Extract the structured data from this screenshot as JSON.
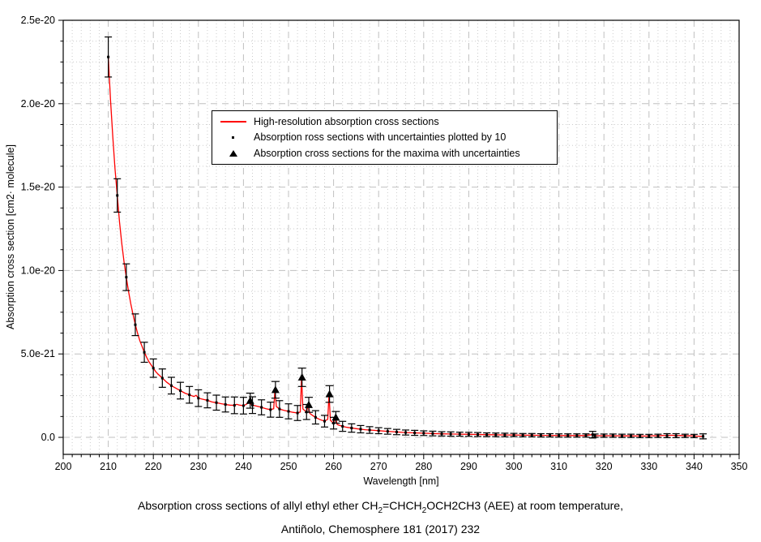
{
  "chart_data": {
    "type": "line",
    "title": "",
    "xlabel": "Wavelength [nm]",
    "ylabel": "Absorption cross section [cm2· molecule]",
    "xlim": [
      200,
      350
    ],
    "ylim_e21": [
      -1.02,
      25
    ],
    "grid": true,
    "legend_position": "top-center",
    "colors": {
      "line": "#ff0000",
      "markers": "#000000",
      "grid_major": "#c0c0c0",
      "grid_minor": "#cccccc"
    },
    "x_ticks": [
      {
        "v": 200,
        "label": "200"
      },
      {
        "v": 210,
        "label": "210"
      },
      {
        "v": 220,
        "label": "220"
      },
      {
        "v": 230,
        "label": "230"
      },
      {
        "v": 240,
        "label": "240"
      },
      {
        "v": 250,
        "label": "250"
      },
      {
        "v": 260,
        "label": "260"
      },
      {
        "v": 270,
        "label": "270"
      },
      {
        "v": 280,
        "label": "280"
      },
      {
        "v": 290,
        "label": "290"
      },
      {
        "v": 300,
        "label": "300"
      },
      {
        "v": 310,
        "label": "310"
      },
      {
        "v": 320,
        "label": "320"
      },
      {
        "v": 330,
        "label": "330"
      },
      {
        "v": 340,
        "label": "340"
      },
      {
        "v": 350,
        "label": "350"
      }
    ],
    "y_ticks": [
      {
        "v": 25,
        "label": "2.5e-20"
      },
      {
        "v": 20,
        "label": "2.0e-20"
      },
      {
        "v": 15,
        "label": "1.5e-20"
      },
      {
        "v": 10,
        "label": "1.0e-20"
      },
      {
        "v": 5,
        "label": "5.0e-21"
      },
      {
        "v": 0,
        "label": "0.0"
      }
    ],
    "x_minor_step": 2,
    "y_minor_step_e21": 1.25,
    "units_note": "values in 1e-21 cm2/molecule",
    "series": {
      "high_res_line": {
        "name": "High-resolution absorption cross sections",
        "points": [
          [
            210,
            22.8
          ],
          [
            210.5,
            20.2
          ],
          [
            211,
            18
          ],
          [
            211.5,
            16.1
          ],
          [
            212,
            14.5
          ],
          [
            212.5,
            12.9
          ],
          [
            213,
            11.6
          ],
          [
            213.5,
            10.5
          ],
          [
            214,
            9.6
          ],
          [
            214.5,
            8.75
          ],
          [
            215,
            8
          ],
          [
            215.5,
            7.35
          ],
          [
            216,
            6.75
          ],
          [
            216.5,
            6.25
          ],
          [
            217,
            5.8
          ],
          [
            217.5,
            5.45
          ],
          [
            218,
            5.1
          ],
          [
            218.5,
            4.8
          ],
          [
            219,
            4.55
          ],
          [
            219.5,
            4.35
          ],
          [
            220,
            4.15
          ],
          [
            220.5,
            3.95
          ],
          [
            221,
            3.8
          ],
          [
            222,
            3.55
          ],
          [
            223,
            3.3
          ],
          [
            224,
            3.1
          ],
          [
            225,
            2.95
          ],
          [
            226,
            2.8
          ],
          [
            227,
            2.65
          ],
          [
            228,
            2.55
          ],
          [
            229,
            2.45
          ],
          [
            229.5,
            2.52
          ],
          [
            230,
            2.35
          ],
          [
            231,
            2.28
          ],
          [
            232,
            2.22
          ],
          [
            233,
            2.12
          ],
          [
            234,
            2.08
          ],
          [
            235,
            2.02
          ],
          [
            236,
            1.97
          ],
          [
            237,
            1.93
          ],
          [
            238,
            1.92
          ],
          [
            238.5,
            1.98
          ],
          [
            239,
            1.94
          ],
          [
            240,
            1.9
          ],
          [
            240.5,
            1.96
          ],
          [
            241,
            2.05
          ],
          [
            241.4,
            2.2
          ],
          [
            241.8,
            1.95
          ],
          [
            242,
            1.93
          ],
          [
            243,
            1.87
          ],
          [
            244,
            1.8
          ],
          [
            245,
            1.72
          ],
          [
            246,
            1.66
          ],
          [
            246.7,
            1.72
          ],
          [
            247,
            2.85
          ],
          [
            247.3,
            1.85
          ],
          [
            248,
            1.7
          ],
          [
            249,
            1.62
          ],
          [
            250,
            1.56
          ],
          [
            251,
            1.5
          ],
          [
            252,
            1.46
          ],
          [
            252.6,
            1.52
          ],
          [
            252.9,
            3.6
          ],
          [
            253.2,
            1.7
          ],
          [
            254,
            1.52
          ],
          [
            254.4,
            1.95
          ],
          [
            254.7,
            1.45
          ],
          [
            255,
            1.38
          ],
          [
            256,
            1.2
          ],
          [
            257,
            1.06
          ],
          [
            258,
            0.97
          ],
          [
            258.7,
            1.08
          ],
          [
            259,
            2.6
          ],
          [
            259.3,
            1.02
          ],
          [
            260,
            0.85
          ],
          [
            260.4,
            1.2
          ],
          [
            260.8,
            0.78
          ],
          [
            261,
            0.75
          ],
          [
            262,
            0.66
          ],
          [
            263,
            0.6
          ],
          [
            264,
            0.56
          ],
          [
            265,
            0.52
          ],
          [
            266,
            0.49
          ],
          [
            267,
            0.46
          ],
          [
            268,
            0.44
          ],
          [
            269,
            0.42
          ],
          [
            270,
            0.4
          ],
          [
            272,
            0.36
          ],
          [
            274,
            0.32
          ],
          [
            276,
            0.29
          ],
          [
            278,
            0.27
          ],
          [
            280,
            0.25
          ],
          [
            282,
            0.23
          ],
          [
            284,
            0.21
          ],
          [
            286,
            0.2
          ],
          [
            288,
            0.19
          ],
          [
            290,
            0.18
          ],
          [
            292,
            0.17
          ],
          [
            294,
            0.16
          ],
          [
            296,
            0.15
          ],
          [
            298,
            0.14
          ],
          [
            300,
            0.14
          ],
          [
            302,
            0.13
          ],
          [
            304,
            0.13
          ],
          [
            306,
            0.12
          ],
          [
            308,
            0.12
          ],
          [
            310,
            0.11
          ],
          [
            312,
            0.11
          ],
          [
            314,
            0.11
          ],
          [
            316,
            0.11
          ],
          [
            317.3,
            0.16
          ],
          [
            318,
            0.1
          ],
          [
            320,
            0.1
          ],
          [
            322,
            0.1
          ],
          [
            324,
            0.09
          ],
          [
            326,
            0.09
          ],
          [
            328,
            0.08
          ],
          [
            330,
            0.08
          ],
          [
            331,
            0.1
          ],
          [
            332,
            0.09
          ],
          [
            333,
            0.12
          ],
          [
            334,
            0.1
          ],
          [
            335,
            0.13
          ],
          [
            336,
            0.1
          ],
          [
            337,
            0.12
          ],
          [
            338,
            0.09
          ],
          [
            339,
            0.1
          ],
          [
            340,
            0.08
          ],
          [
            341,
            0.07
          ],
          [
            342,
            0.06
          ]
        ]
      },
      "sampled_points": {
        "name": "Absorption ross sections with uncertainties plotted by 10",
        "points_wl_value_err": [
          [
            210,
            22.8,
            1.2
          ],
          [
            212,
            14.5,
            1.0
          ],
          [
            214,
            9.6,
            0.8
          ],
          [
            216,
            6.75,
            0.65
          ],
          [
            218,
            5.1,
            0.6
          ],
          [
            220,
            4.15,
            0.55
          ],
          [
            222,
            3.55,
            0.55
          ],
          [
            224,
            3.1,
            0.5
          ],
          [
            226,
            2.8,
            0.5
          ],
          [
            228,
            2.55,
            0.5
          ],
          [
            230,
            2.35,
            0.5
          ],
          [
            232,
            2.22,
            0.45
          ],
          [
            234,
            2.08,
            0.45
          ],
          [
            236,
            1.97,
            0.45
          ],
          [
            238,
            1.92,
            0.5
          ],
          [
            240,
            1.9,
            0.5
          ],
          [
            242,
            1.93,
            0.5
          ],
          [
            244,
            1.8,
            0.45
          ],
          [
            246,
            1.66,
            0.45
          ],
          [
            248,
            1.7,
            0.5
          ],
          [
            250,
            1.56,
            0.45
          ],
          [
            252,
            1.46,
            0.45
          ],
          [
            254,
            1.52,
            0.45
          ],
          [
            256,
            1.2,
            0.4
          ],
          [
            258,
            0.97,
            0.35
          ],
          [
            260,
            0.85,
            0.35
          ],
          [
            262,
            0.66,
            0.3
          ],
          [
            264,
            0.56,
            0.25
          ],
          [
            266,
            0.49,
            0.22
          ],
          [
            268,
            0.44,
            0.2
          ],
          [
            270,
            0.4,
            0.18
          ],
          [
            272,
            0.36,
            0.17
          ],
          [
            274,
            0.32,
            0.16
          ],
          [
            276,
            0.29,
            0.15
          ],
          [
            278,
            0.27,
            0.15
          ],
          [
            280,
            0.25,
            0.14
          ],
          [
            282,
            0.23,
            0.14
          ],
          [
            284,
            0.21,
            0.13
          ],
          [
            286,
            0.2,
            0.13
          ],
          [
            288,
            0.19,
            0.12
          ],
          [
            290,
            0.18,
            0.12
          ],
          [
            292,
            0.17,
            0.12
          ],
          [
            294,
            0.16,
            0.11
          ],
          [
            296,
            0.15,
            0.11
          ],
          [
            298,
            0.14,
            0.11
          ],
          [
            300,
            0.14,
            0.1
          ],
          [
            302,
            0.13,
            0.1
          ],
          [
            304,
            0.13,
            0.1
          ],
          [
            306,
            0.12,
            0.1
          ],
          [
            308,
            0.12,
            0.1
          ],
          [
            310,
            0.11,
            0.1
          ],
          [
            312,
            0.11,
            0.1
          ],
          [
            314,
            0.11,
            0.1
          ],
          [
            316,
            0.11,
            0.1
          ],
          [
            317.5,
            0.16,
            0.2
          ],
          [
            318,
            0.1,
            0.1
          ],
          [
            320,
            0.1,
            0.1
          ],
          [
            322,
            0.1,
            0.1
          ],
          [
            324,
            0.09,
            0.1
          ],
          [
            326,
            0.09,
            0.1
          ],
          [
            328,
            0.08,
            0.1
          ],
          [
            330,
            0.08,
            0.1
          ],
          [
            332,
            0.09,
            0.1
          ],
          [
            334,
            0.1,
            0.12
          ],
          [
            336,
            0.1,
            0.12
          ],
          [
            338,
            0.09,
            0.1
          ],
          [
            340,
            0.08,
            0.1
          ],
          [
            342,
            0.06,
            0.15
          ]
        ]
      },
      "maxima": {
        "name": "Absorption cross sections for the maxima with uncertainties",
        "points_wl_value_err": [
          [
            241.5,
            2.2,
            0.45
          ],
          [
            247.1,
            2.85,
            0.5
          ],
          [
            253.0,
            3.6,
            0.55
          ],
          [
            254.5,
            1.95,
            0.45
          ],
          [
            259.1,
            2.6,
            0.5
          ],
          [
            260.5,
            1.2,
            0.35
          ]
        ]
      }
    }
  },
  "legend": {
    "entries": [
      {
        "symbol": "red-line",
        "label": "High-resolution absorption cross sections"
      },
      {
        "symbol": "dot-marker",
        "label": "Absorption ross sections with uncertainties plotted by 10"
      },
      {
        "symbol": "triangle-marker",
        "label": "Absorption cross sections for the maxima with uncertainties"
      }
    ]
  },
  "caption": {
    "line1_parts": [
      {
        "t": "Absorption cross sections of allyl ethyl ether CH"
      },
      {
        "t": "2",
        "sub": true
      },
      {
        "t": "=CHCH"
      },
      {
        "t": "2",
        "sub": true
      },
      {
        "t": "OCH2CH3 (AEE) at room temperature,"
      }
    ],
    "line2": "Antiñolo, Chemosphere 181 (2017) 232"
  }
}
